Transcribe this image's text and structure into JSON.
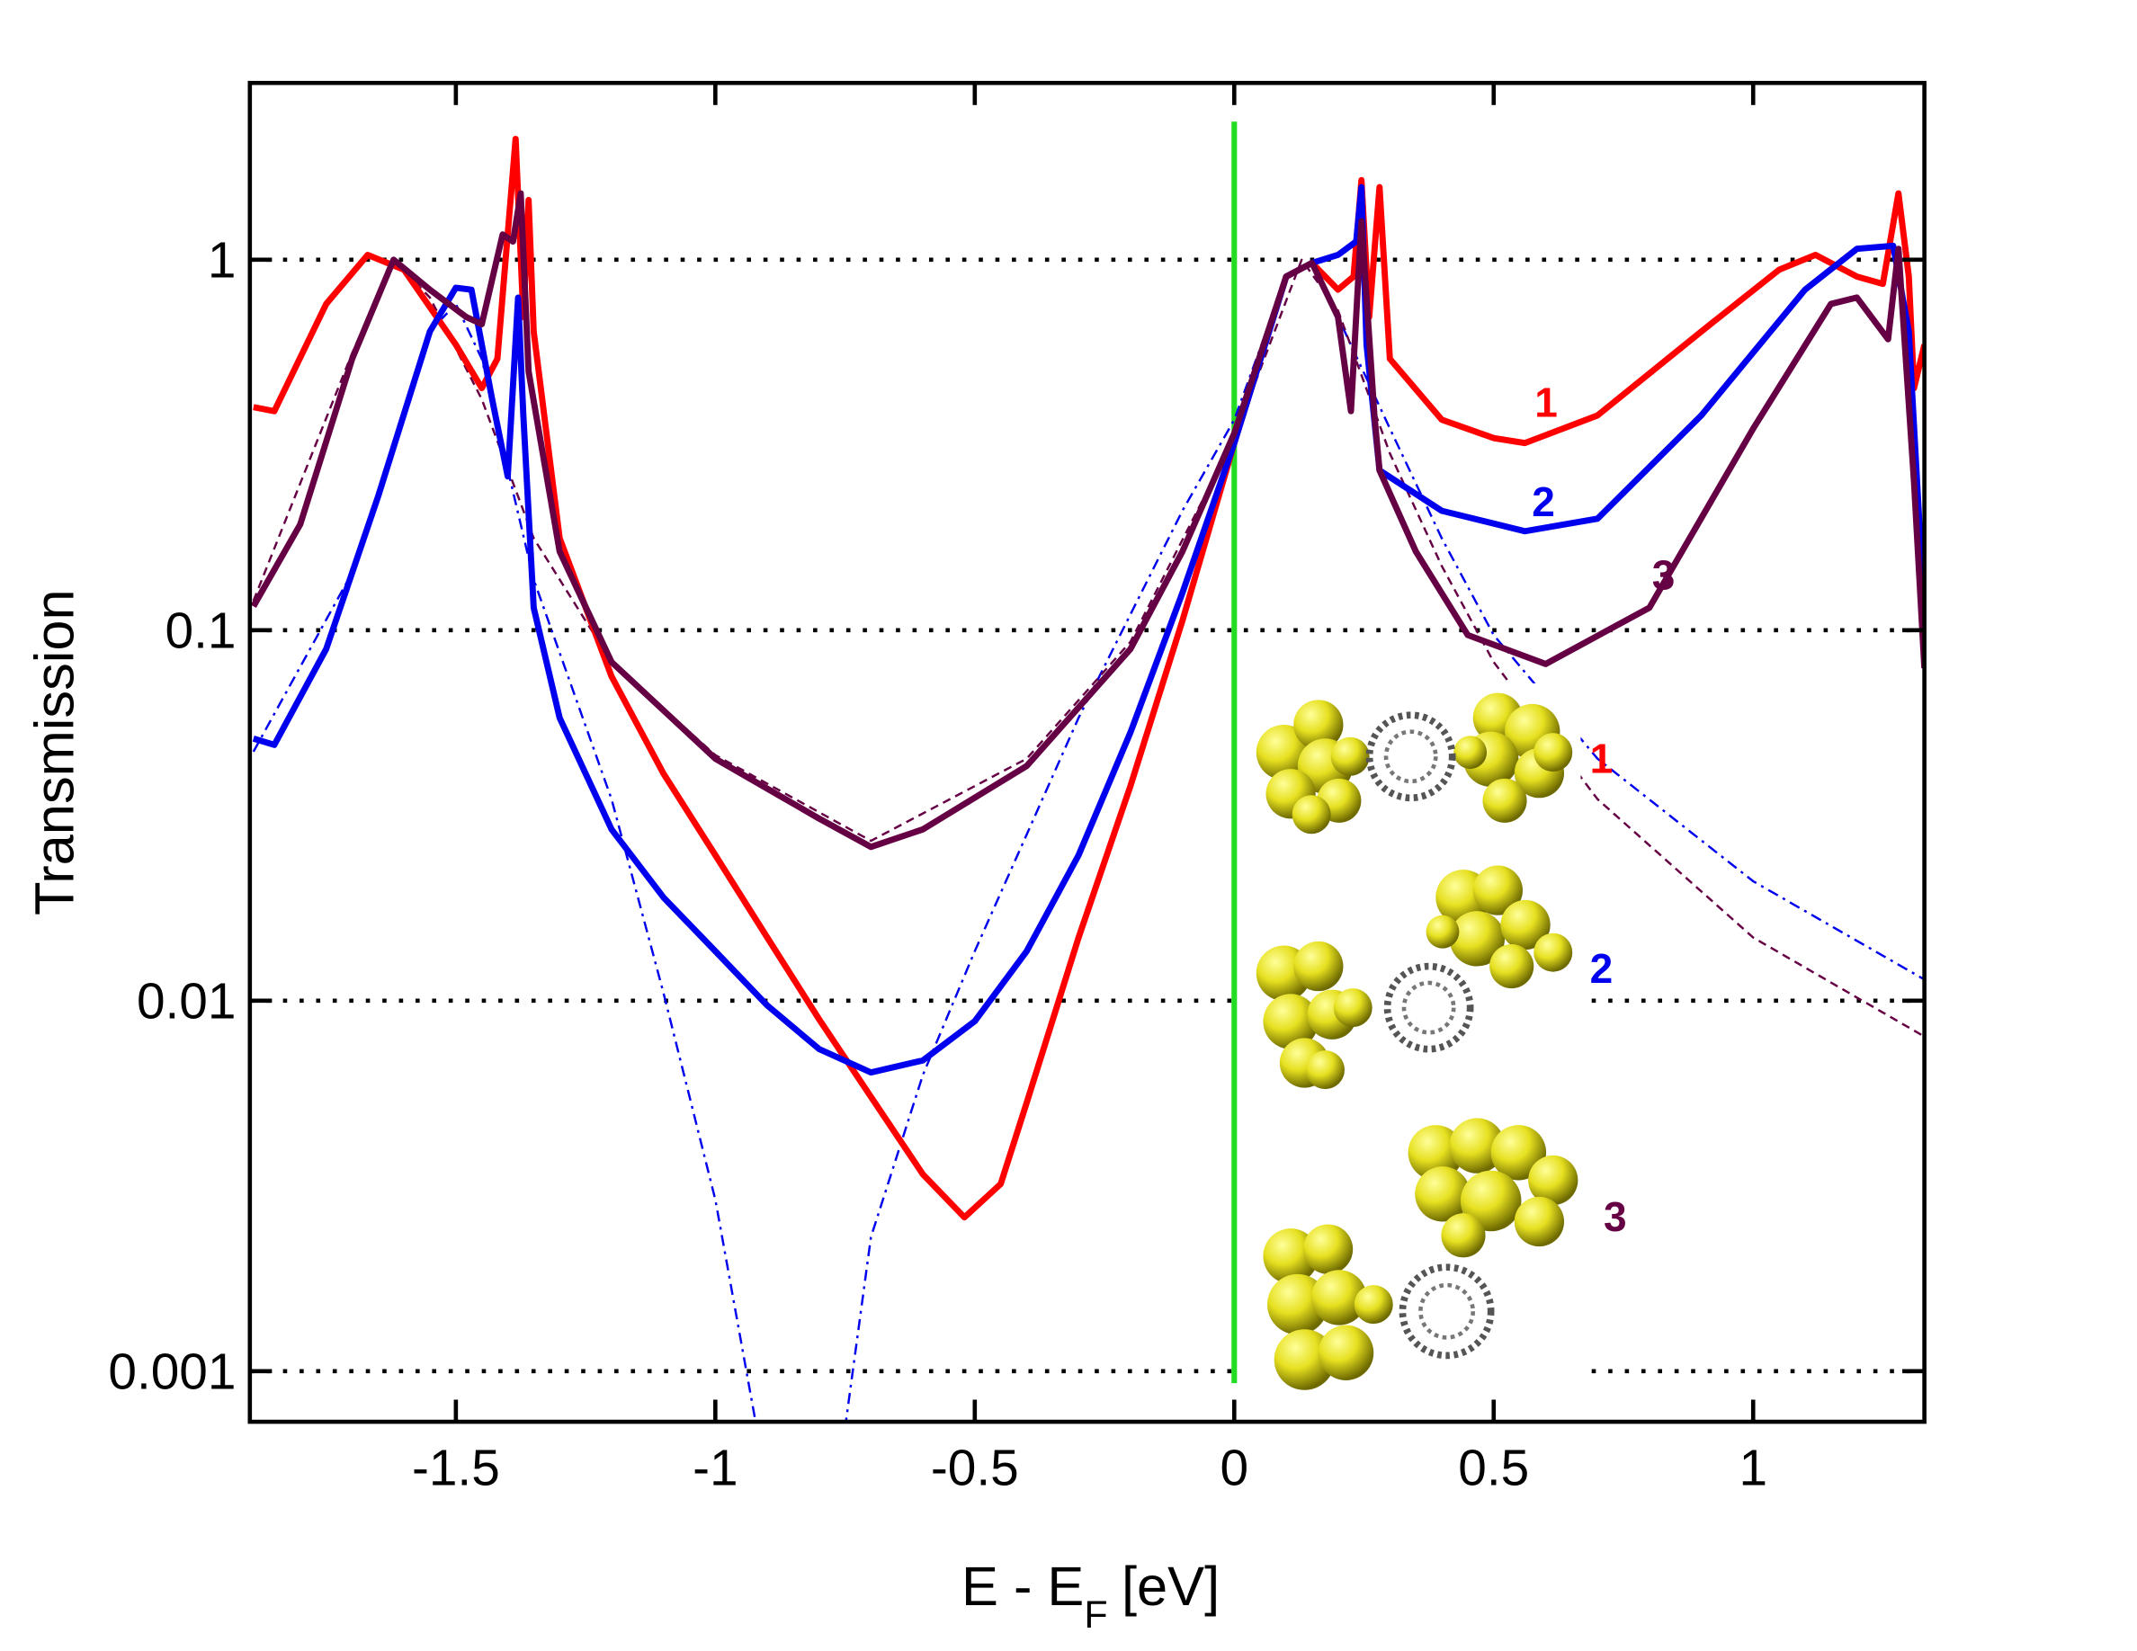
{
  "chart_data": {
    "type": "line",
    "ylabel": "Transmission",
    "xlabel_parts": [
      "E - E",
      "F",
      "[eV]"
    ],
    "xlim": [
      -1.897,
      1.33
    ],
    "ylim": [
      0.00073,
      3
    ],
    "log_y": true,
    "xticks": [
      -1.5,
      -1,
      -0.5,
      0,
      0.5,
      1
    ],
    "yticks": [
      0.001,
      0.01,
      0.1,
      1
    ],
    "grid": true,
    "vline": {
      "x": 0,
      "color": "#22dd22"
    },
    "series": [
      {
        "name": "1",
        "color": "#ff0000",
        "style": "solid",
        "x": [
          -1.89,
          -1.85,
          -1.75,
          -1.67,
          -1.6,
          -1.5,
          -1.45,
          -1.42,
          -1.385,
          -1.37,
          -1.36,
          -1.35,
          -1.3,
          -1.2,
          -1.1,
          -1.0,
          -0.9,
          -0.8,
          -0.7,
          -0.6,
          -0.52,
          -0.45,
          -0.4,
          -0.3,
          -0.2,
          -0.1,
          0,
          0.1,
          0.15,
          0.2,
          0.23,
          0.245,
          0.26,
          0.28,
          0.3,
          0.4,
          0.5,
          0.56,
          0.7,
          0.9,
          1.05,
          1.12,
          1.2,
          1.25,
          1.28,
          1.3,
          1.31,
          1.33
        ],
        "values": [
          0.4,
          0.39,
          0.76,
          1.03,
          0.94,
          0.59,
          0.45,
          0.54,
          2.12,
          0.7,
          1.45,
          0.64,
          0.177,
          0.075,
          0.041,
          0.0247,
          0.0148,
          0.0089,
          0.0055,
          0.0034,
          0.0026,
          0.0032,
          0.0053,
          0.0148,
          0.038,
          0.106,
          0.32,
          0.9,
          0.98,
          0.83,
          0.9,
          1.64,
          0.7,
          1.57,
          0.54,
          0.37,
          0.33,
          0.32,
          0.38,
          0.64,
          0.94,
          1.03,
          0.9,
          0.86,
          1.51,
          0.9,
          0.45,
          0.59
        ]
      },
      {
        "name": "2",
        "color": "#0000ee",
        "style": "solid",
        "x": [
          -1.89,
          -1.85,
          -1.75,
          -1.65,
          -1.55,
          -1.5,
          -1.47,
          -1.43,
          -1.4,
          -1.38,
          -1.37,
          -1.35,
          -1.3,
          -1.2,
          -1.1,
          -1.0,
          -0.9,
          -0.8,
          -0.7,
          -0.6,
          -0.5,
          -0.4,
          -0.3,
          -0.2,
          -0.1,
          0,
          0.1,
          0.15,
          0.2,
          0.235,
          0.245,
          0.255,
          0.28,
          0.4,
          0.56,
          0.7,
          0.9,
          1.1,
          1.2,
          1.27,
          1.3,
          1.33
        ],
        "values": [
          0.051,
          0.049,
          0.089,
          0.229,
          0.64,
          0.84,
          0.83,
          0.42,
          0.26,
          0.79,
          0.38,
          0.115,
          0.058,
          0.029,
          0.019,
          0.0136,
          0.0097,
          0.0074,
          0.0064,
          0.0069,
          0.0088,
          0.0136,
          0.0247,
          0.053,
          0.126,
          0.32,
          0.9,
          0.98,
          1.03,
          1.12,
          1.57,
          0.59,
          0.27,
          0.21,
          0.185,
          0.2,
          0.38,
          0.83,
          1.07,
          1.09,
          0.64,
          0.11
        ]
      },
      {
        "name": "3",
        "color": "#660044",
        "style": "solid",
        "x": [
          -1.89,
          -1.8,
          -1.7,
          -1.62,
          -1.55,
          -1.48,
          -1.45,
          -1.41,
          -1.39,
          -1.375,
          -1.36,
          -1.3,
          -1.2,
          -1.0,
          -0.8,
          -0.7,
          -0.6,
          -0.4,
          -0.2,
          -0.1,
          0,
          0.1,
          0.15,
          0.2,
          0.225,
          0.245,
          0.27,
          0.28,
          0.35,
          0.45,
          0.6,
          0.8,
          1.0,
          1.15,
          1.2,
          1.26,
          1.28,
          1.31,
          1.33
        ],
        "values": [
          0.116,
          0.193,
          0.54,
          1.0,
          0.83,
          0.7,
          0.67,
          1.17,
          1.12,
          1.51,
          0.5,
          0.163,
          0.082,
          0.045,
          0.031,
          0.026,
          0.029,
          0.043,
          0.089,
          0.163,
          0.34,
          0.9,
          0.98,
          0.7,
          0.39,
          1.27,
          0.38,
          0.27,
          0.163,
          0.097,
          0.081,
          0.115,
          0.35,
          0.76,
          0.79,
          0.61,
          1.07,
          0.25,
          0.079
        ]
      },
      {
        "color": "#0000ee",
        "style": "dashdot",
        "x": [
          -1.89,
          -1.7,
          -1.55,
          -1.5,
          -1.45,
          -1.35,
          -1.2,
          -1.1,
          -1.0,
          -0.92,
          -0.83,
          -0.75,
          -0.7,
          -0.6,
          -0.5,
          -0.3,
          -0.1,
          0,
          0.1,
          0.15,
          0.2,
          0.3,
          0.4,
          0.5,
          0.7,
          1.0,
          1.33
        ],
        "values": [
          0.047,
          0.143,
          0.64,
          0.76,
          0.54,
          0.137,
          0.035,
          0.0105,
          0.0029,
          0.0007,
          null,
          0.0007,
          0.0023,
          0.0063,
          0.0136,
          0.058,
          0.21,
          0.37,
          0.9,
          0.98,
          0.7,
          0.35,
          0.177,
          0.097,
          0.045,
          0.021,
          0.0114
        ]
      },
      {
        "color": "#660044",
        "style": "dashed",
        "x": [
          -1.89,
          -1.7,
          -1.62,
          -1.55,
          -1.45,
          -1.35,
          -1.2,
          -1.0,
          -0.7,
          -0.4,
          -0.2,
          0,
          0.13,
          0.2,
          0.3,
          0.4,
          0.5,
          0.7,
          1.0,
          1.33
        ],
        "values": [
          0.12,
          0.56,
          1.0,
          0.79,
          0.42,
          0.177,
          0.082,
          0.046,
          0.027,
          0.045,
          0.093,
          0.33,
          1.0,
          0.73,
          0.3,
          0.149,
          0.082,
          0.035,
          0.0148,
          0.008
        ]
      }
    ]
  }
}
